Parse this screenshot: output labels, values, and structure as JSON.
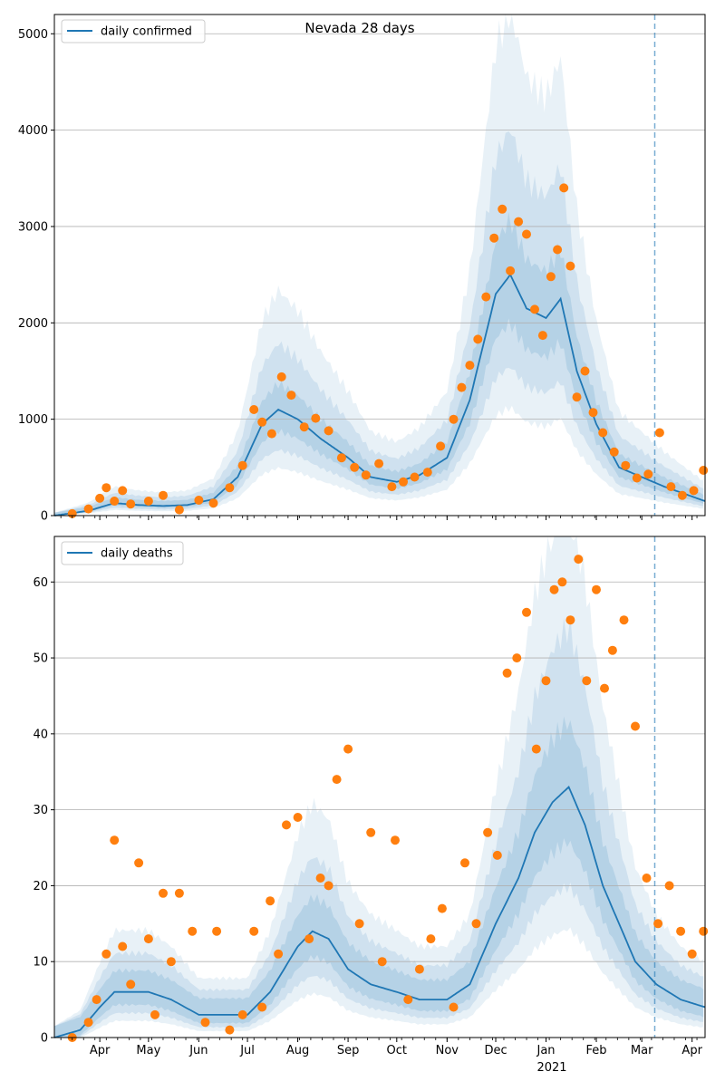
{
  "title": "Nevada 28 days",
  "colors": {
    "line": "#1f77b4",
    "points": "#ff7f0e",
    "band": "#1f77b4",
    "grid": "#b0b0b0",
    "axis": "#000000"
  },
  "x_axis": {
    "tick_labels": [
      "Apr",
      "May",
      "Jun",
      "Jul",
      "Aug",
      "Sep",
      "Oct",
      "Nov",
      "Dec",
      "Jan",
      "Feb",
      "Mar",
      "Apr"
    ],
    "year_label": "2021",
    "forecast_marker": "2021-03-09"
  },
  "chart_data": [
    {
      "type": "line",
      "legend": "daily confirmed",
      "legend_position": "top-left",
      "grid": "horizontal",
      "xlim": [
        "2020-03-04",
        "2021-04-09"
      ],
      "ylim": [
        0,
        5200
      ],
      "yticks": [
        0,
        1000,
        2000,
        3000,
        4000,
        5000
      ],
      "series": [
        {
          "name": "daily confirmed",
          "style": "line",
          "x": [
            "2020-03-04",
            "2020-03-25",
            "2020-04-10",
            "2020-04-25",
            "2020-05-10",
            "2020-05-25",
            "2020-06-10",
            "2020-06-25",
            "2020-07-10",
            "2020-07-20",
            "2020-08-01",
            "2020-08-15",
            "2020-09-01",
            "2020-09-15",
            "2020-10-01",
            "2020-10-15",
            "2020-11-01",
            "2020-11-15",
            "2020-12-01",
            "2020-12-10",
            "2020-12-20",
            "2021-01-01",
            "2021-01-10",
            "2021-01-20",
            "2021-02-01",
            "2021-02-15",
            "2021-03-01",
            "2021-03-15",
            "2021-04-09"
          ],
          "y": [
            0,
            50,
            130,
            110,
            100,
            110,
            170,
            400,
            950,
            1100,
            1000,
            800,
            600,
            400,
            350,
            420,
            600,
            1200,
            2300,
            2500,
            2150,
            2050,
            2250,
            1500,
            950,
            500,
            400,
            300,
            150
          ]
        },
        {
          "name": "observed",
          "style": "points",
          "x": [
            "2020-03-15",
            "2020-03-25",
            "2020-04-01",
            "2020-04-05",
            "2020-04-10",
            "2020-04-15",
            "2020-04-20",
            "2020-05-01",
            "2020-05-10",
            "2020-05-20",
            "2020-06-01",
            "2020-06-10",
            "2020-06-20",
            "2020-06-28",
            "2020-07-05",
            "2020-07-10",
            "2020-07-16",
            "2020-07-22",
            "2020-07-28",
            "2020-08-05",
            "2020-08-12",
            "2020-08-20",
            "2020-08-28",
            "2020-09-05",
            "2020-09-12",
            "2020-09-20",
            "2020-09-28",
            "2020-10-05",
            "2020-10-12",
            "2020-10-20",
            "2020-10-28",
            "2020-11-05",
            "2020-11-10",
            "2020-11-15",
            "2020-11-20",
            "2020-11-25",
            "2020-11-30",
            "2020-12-05",
            "2020-12-10",
            "2020-12-15",
            "2020-12-20",
            "2020-12-25",
            "2020-12-30",
            "2021-01-04",
            "2021-01-08",
            "2021-01-12",
            "2021-01-16",
            "2021-01-20",
            "2021-01-25",
            "2021-01-30",
            "2021-02-05",
            "2021-02-12",
            "2021-02-19",
            "2021-02-26",
            "2021-03-05",
            "2021-03-12",
            "2021-03-19",
            "2021-03-26",
            "2021-04-02",
            "2021-04-08"
          ],
          "y": [
            20,
            70,
            180,
            290,
            150,
            260,
            120,
            150,
            210,
            60,
            160,
            130,
            290,
            520,
            1100,
            970,
            850,
            1440,
            1250,
            920,
            1010,
            880,
            600,
            500,
            420,
            540,
            300,
            350,
            400,
            450,
            720,
            1000,
            1330,
            1560,
            1830,
            2270,
            2880,
            3180,
            2540,
            3050,
            2920,
            2140,
            1870,
            2480,
            2760,
            3400,
            2590,
            1230,
            1500,
            1070,
            860,
            660,
            520,
            390,
            430,
            860,
            300,
            210,
            260,
            470
          ]
        }
      ]
    },
    {
      "type": "line",
      "legend": "daily deaths",
      "legend_position": "top-left",
      "grid": "horizontal",
      "xlim": [
        "2020-03-04",
        "2021-04-09"
      ],
      "ylim": [
        0,
        66
      ],
      "yticks": [
        0,
        10,
        20,
        30,
        40,
        50,
        60
      ],
      "series": [
        {
          "name": "daily deaths",
          "style": "line",
          "x": [
            "2020-03-04",
            "2020-03-20",
            "2020-04-01",
            "2020-04-10",
            "2020-04-20",
            "2020-05-01",
            "2020-05-15",
            "2020-06-01",
            "2020-06-20",
            "2020-07-01",
            "2020-07-15",
            "2020-08-01",
            "2020-08-10",
            "2020-08-20",
            "2020-09-01",
            "2020-09-15",
            "2020-10-01",
            "2020-10-15",
            "2020-11-01",
            "2020-11-15",
            "2020-12-01",
            "2020-12-15",
            "2020-12-25",
            "2021-01-05",
            "2021-01-15",
            "2021-01-25",
            "2021-02-05",
            "2021-02-15",
            "2021-02-25",
            "2021-03-10",
            "2021-03-25",
            "2021-04-09"
          ],
          "y": [
            0,
            1,
            4,
            6,
            6,
            6,
            5,
            3,
            3,
            3,
            6,
            12,
            14,
            13,
            9,
            7,
            6,
            5,
            5,
            7,
            15,
            21,
            27,
            31,
            33,
            28,
            20,
            15,
            10,
            7,
            5,
            4
          ]
        },
        {
          "name": "observed",
          "style": "points",
          "x": [
            "2020-03-15",
            "2020-03-25",
            "2020-03-30",
            "2020-04-05",
            "2020-04-10",
            "2020-04-15",
            "2020-04-20",
            "2020-04-25",
            "2020-05-01",
            "2020-05-05",
            "2020-05-10",
            "2020-05-15",
            "2020-05-20",
            "2020-05-28",
            "2020-06-05",
            "2020-06-12",
            "2020-06-20",
            "2020-06-28",
            "2020-07-05",
            "2020-07-10",
            "2020-07-15",
            "2020-07-20",
            "2020-07-25",
            "2020-08-01",
            "2020-08-08",
            "2020-08-15",
            "2020-08-20",
            "2020-08-25",
            "2020-09-01",
            "2020-09-08",
            "2020-09-15",
            "2020-09-22",
            "2020-09-30",
            "2020-10-08",
            "2020-10-15",
            "2020-10-22",
            "2020-10-29",
            "2020-11-05",
            "2020-11-12",
            "2020-11-19",
            "2020-11-26",
            "2020-12-02",
            "2020-12-08",
            "2020-12-14",
            "2020-12-20",
            "2020-12-26",
            "2021-01-01",
            "2021-01-06",
            "2021-01-11",
            "2021-01-16",
            "2021-01-21",
            "2021-01-26",
            "2021-02-01",
            "2021-02-06",
            "2021-02-11",
            "2021-02-18",
            "2021-02-25",
            "2021-03-04",
            "2021-03-11",
            "2021-03-18",
            "2021-03-25",
            "2021-04-01",
            "2021-04-08"
          ],
          "y": [
            0,
            2,
            5,
            11,
            26,
            12,
            7,
            23,
            13,
            3,
            19,
            10,
            19,
            14,
            2,
            14,
            1,
            3,
            14,
            4,
            18,
            11,
            28,
            29,
            13,
            21,
            20,
            34,
            38,
            15,
            27,
            10,
            26,
            5,
            9,
            13,
            17,
            4,
            23,
            15,
            27,
            24,
            48,
            50,
            56,
            38,
            47,
            59,
            60,
            55,
            63,
            47,
            59,
            46,
            51,
            55,
            41,
            21,
            15,
            20,
            14,
            11,
            14
          ]
        }
      ]
    }
  ]
}
